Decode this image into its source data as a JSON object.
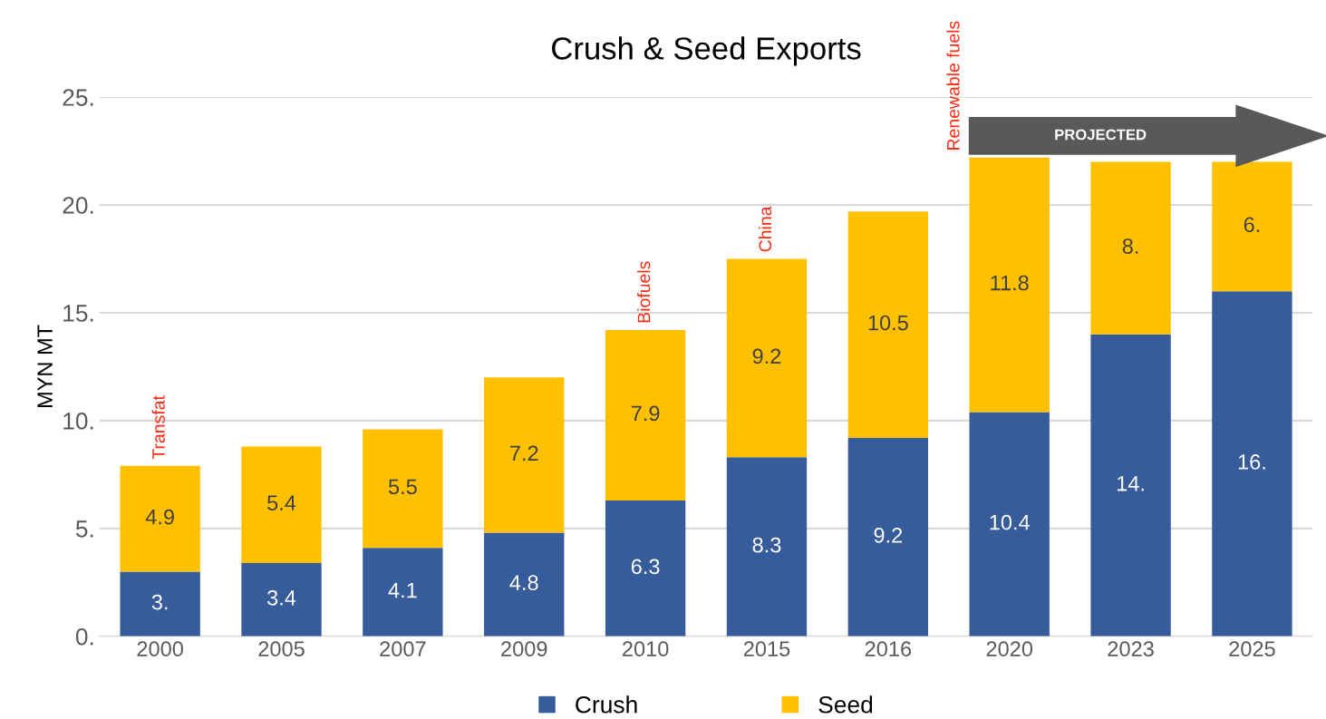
{
  "chart_data": {
    "type": "bar",
    "title": "Crush & Seed Exports",
    "ylabel": "MYN MT",
    "categories": [
      "2000",
      "2005",
      "2007",
      "2009",
      "2010",
      "2015",
      "2016",
      "2020",
      "2023",
      "2025"
    ],
    "stacked": true,
    "series": [
      {
        "name": "Crush",
        "color": "#365c9c",
        "values": [
          3.0,
          3.4,
          4.1,
          4.8,
          6.3,
          8.3,
          9.2,
          10.4,
          14,
          16
        ],
        "value_labels": [
          "3.",
          "3.4",
          "4.1",
          "4.8",
          "6.3",
          "8.3",
          "9.2",
          "10.4",
          "14.",
          "16."
        ]
      },
      {
        "name": "Seed",
        "color": "#ffc000",
        "values": [
          4.9,
          5.4,
          5.5,
          7.2,
          7.9,
          9.2,
          10.5,
          11.8,
          8,
          6
        ],
        "value_labels": [
          "4.9",
          "5.4",
          "5.5",
          "7.2",
          "7.9",
          "9.2",
          "10.5",
          "11.8",
          "8.",
          "6."
        ]
      }
    ],
    "ylim": [
      0,
      25
    ],
    "yticks": [
      {
        "value": 0,
        "label": "0."
      },
      {
        "value": 5,
        "label": "5."
      },
      {
        "value": 10,
        "label": "10."
      },
      {
        "value": 15,
        "label": "15."
      },
      {
        "value": 20,
        "label": "20."
      },
      {
        "value": 25,
        "label": "25."
      }
    ],
    "grid": "y",
    "legend": "bottom",
    "annotations": [
      {
        "text": "Transfat",
        "x": "2000",
        "y": 7.9
      },
      {
        "text": "Biofuels",
        "x": "2010",
        "y": 14.2
      },
      {
        "text": "China",
        "x": "2015",
        "y": 17.5
      },
      {
        "text": "Renewable fuels",
        "x": "2020",
        "y": 22.2
      },
      "PROJECTED"
    ]
  }
}
